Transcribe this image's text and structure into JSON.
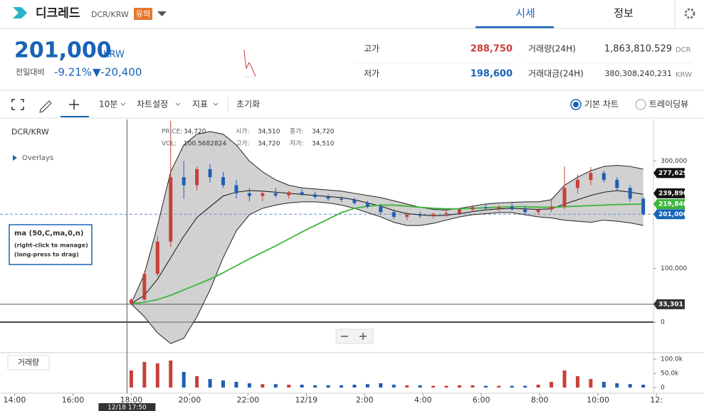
{
  "header": {
    "name": "디크레드",
    "pair": "DCR/KRW",
    "badge": "유의",
    "tabs": [
      "시세",
      "정보"
    ]
  },
  "summary": {
    "price": "201,000",
    "unit": "KRW",
    "change_label": "전일대비",
    "change_pct": "-9.21%",
    "change_abs": "▼-20,400",
    "high_label": "고가",
    "high": "288,750",
    "low_label": "저가",
    "low": "198,600",
    "vol_label": "거래량(24H)",
    "vol": "1,863,810.529",
    "vol_unit": "DCR",
    "amt_label": "거래대금(24H)",
    "amt": "380,308,240,231",
    "amt_unit": "KRW"
  },
  "toolbar": {
    "interval": "10분",
    "settings": "차트설정",
    "indicators": "지표",
    "reset": "초기화",
    "basic": "기본 차트",
    "tradingview": "트레이딩뷰"
  },
  "chart_data": {
    "type": "candlestick",
    "symbol": "DCR/KRW",
    "overlays": "Overlays",
    "info": [
      {
        "label": "PRICE:",
        "value": "34,720"
      },
      {
        "label": "VOL:",
        "value": "100.5682824"
      },
      {
        "label": "시가:",
        "value": "34,510"
      },
      {
        "label": "고가:",
        "value": "34,720"
      },
      {
        "label": "종가:",
        "value": "34,720"
      },
      {
        "label": "저가:",
        "value": "34,510"
      }
    ],
    "legend": [
      "ma (50,C,ma,0,n)",
      "(right-click to manage)",
      "(long-press to drag)"
    ],
    "crosshair_label": "12/18 17:50",
    "volume_label": "거래량",
    "x": [
      18.0,
      18.45,
      18.9,
      19.35,
      19.8,
      20.25,
      20.7,
      21.15,
      21.6,
      22.05,
      22.5,
      22.95,
      23.4,
      23.85,
      24.3,
      24.75,
      25.2,
      25.65,
      26.1,
      26.55,
      27.0,
      27.45,
      27.9,
      28.35,
      28.8,
      29.25,
      29.7,
      30.15,
      30.6,
      31.05,
      31.5,
      31.95,
      32.4,
      32.85,
      33.3,
      33.75,
      34.2,
      34.65,
      35.1,
      35.55
    ],
    "open": [
      34720,
      42000,
      90000,
      150000,
      270000,
      255000,
      285000,
      270000,
      255000,
      240000,
      235000,
      240000,
      236000,
      242000,
      238000,
      233000,
      230000,
      228000,
      222000,
      215000,
      205000,
      196000,
      200000,
      198000,
      201000,
      203000,
      210000,
      214000,
      212000,
      215000,
      210000,
      205000,
      210000,
      215000,
      250000,
      265000,
      277629,
      265000,
      250000,
      230000
    ],
    "high": [
      45000,
      95000,
      160000,
      375000,
      300000,
      290000,
      295000,
      280000,
      265000,
      250000,
      245000,
      250000,
      245000,
      248000,
      243000,
      238000,
      234000,
      232000,
      226000,
      220000,
      210000,
      205000,
      206000,
      204000,
      208000,
      212000,
      218000,
      220000,
      218000,
      222000,
      216000,
      212000,
      230000,
      290000,
      275000,
      288750,
      282000,
      270000,
      255000,
      234000
    ],
    "low": [
      33301,
      40000,
      85000,
      140000,
      230000,
      245000,
      260000,
      250000,
      230000,
      225000,
      225000,
      232000,
      230000,
      235000,
      230000,
      226000,
      224000,
      218000,
      212000,
      200000,
      192000,
      190000,
      194000,
      193000,
      196000,
      200000,
      205000,
      208000,
      206000,
      208000,
      200000,
      200000,
      205000,
      210000,
      240000,
      255000,
      260000,
      245000,
      225000,
      198600
    ],
    "close": [
      42000,
      90000,
      150000,
      270000,
      255000,
      285000,
      270000,
      255000,
      240000,
      235000,
      240000,
      236000,
      242000,
      238000,
      233000,
      230000,
      228000,
      222000,
      215000,
      205000,
      196000,
      200000,
      198000,
      201000,
      203000,
      210000,
      214000,
      212000,
      215000,
      210000,
      205000,
      210000,
      215000,
      250000,
      265000,
      277629,
      265000,
      250000,
      230000,
      201000
    ],
    "volume": [
      60000,
      90000,
      85000,
      95000,
      55000,
      40000,
      30000,
      25000,
      20000,
      15000,
      12000,
      12000,
      10000,
      10000,
      8000,
      8000,
      8000,
      10000,
      12000,
      15000,
      10000,
      8000,
      8000,
      6000,
      6000,
      8000,
      8000,
      6000,
      6000,
      6000,
      6000,
      10000,
      20000,
      60000,
      40000,
      30000,
      20000,
      15000,
      12000,
      10000
    ],
    "indicators": [
      {
        "name": "bb_upper",
        "color": "#222",
        "values": [
          35000,
          90000,
          180000,
          280000,
          330000,
          350000,
          355000,
          350000,
          330000,
          300000,
          280000,
          265000,
          255000,
          250000,
          248000,
          246000,
          244000,
          240000,
          236000,
          232000,
          226000,
          220000,
          214000,
          210000,
          209000,
          212000,
          216000,
          220000,
          222000,
          223000,
          224000,
          224000,
          228000,
          255000,
          270000,
          282000,
          290000,
          292000,
          290000,
          285000
        ]
      },
      {
        "name": "bb_lower",
        "color": "#222",
        "values": [
          34000,
          10000,
          -20000,
          -40000,
          -30000,
          10000,
          60000,
          120000,
          170000,
          200000,
          212000,
          218000,
          222000,
          224000,
          224000,
          222000,
          218000,
          212000,
          204000,
          196000,
          186000,
          180000,
          180000,
          184000,
          190000,
          196000,
          200000,
          202000,
          204000,
          204000,
          200000,
          196000,
          194000,
          190000,
          188000,
          186000,
          190000,
          188000,
          185000,
          180000
        ]
      },
      {
        "name": "ma20",
        "color": "#111",
        "values": [
          34720,
          50000,
          80000,
          120000,
          160000,
          195000,
          215000,
          235000,
          242000,
          245000,
          244000,
          242000,
          240000,
          238000,
          236000,
          234000,
          232000,
          228000,
          222000,
          216000,
          208000,
          202000,
          200000,
          198000,
          199000,
          202000,
          206000,
          209000,
          211000,
          212000,
          211000,
          210000,
          211000,
          220000,
          228000,
          236000,
          242000,
          245000,
          242000,
          238000
        ]
      },
      {
        "name": "ma50",
        "color": "#3cb63c",
        "values": [
          34720,
          37000,
          42000,
          50000,
          60000,
          70000,
          80000,
          92000,
          105000,
          118000,
          130000,
          142000,
          155000,
          168000,
          180000,
          192000,
          204000,
          212000,
          216000,
          218000,
          218000,
          216000,
          214000,
          212000,
          211000,
          211000,
          212000,
          213000,
          214000,
          215000,
          215000,
          214000,
          214000,
          215000,
          216000,
          217000,
          218000,
          219000,
          219500,
          219840
        ]
      }
    ],
    "up_color": "#c8403a",
    "down_color": "#1f5fb4",
    "xlim": [
      13.5,
      35.9
    ],
    "xticks": [
      {
        "value": 14,
        "label": "14:00"
      },
      {
        "value": 16,
        "label": "16:00"
      },
      {
        "value": 18,
        "label": "18:00"
      },
      {
        "value": 20,
        "label": "20:00"
      },
      {
        "value": 22,
        "label": "22:00"
      },
      {
        "value": 24,
        "label": "12/19"
      },
      {
        "value": 26,
        "label": "2:00"
      },
      {
        "value": 28,
        "label": "4:00"
      },
      {
        "value": 30,
        "label": "6:00"
      },
      {
        "value": 32,
        "label": "8:00"
      },
      {
        "value": 34,
        "label": "10:00"
      },
      {
        "value": 36,
        "label": "12:"
      }
    ],
    "ylim": [
      -55600,
      377500
    ],
    "yticks": [
      {
        "value": 300000,
        "label": "300,000"
      },
      {
        "value": 100000,
        "label": "100,000"
      },
      0
    ],
    "vol_ylim": [
      0,
      120000
    ],
    "vol_yticks": [
      {
        "value": 100000,
        "label": "100.0k"
      },
      {
        "value": 50000,
        "label": "50.0k"
      },
      0
    ],
    "price_tags": [
      {
        "value": 277629,
        "label": "277,629",
        "color": "#111"
      },
      {
        "value": 239890,
        "label": "239,890",
        "color": "#111"
      },
      {
        "value": 219840,
        "label": "219,840",
        "color": "#3cb63c"
      },
      {
        "value": 201000,
        "label": "201,000",
        "color": "#1763b6"
      },
      {
        "value": 33301,
        "label": "33,301",
        "color": "#333"
      }
    ]
  }
}
